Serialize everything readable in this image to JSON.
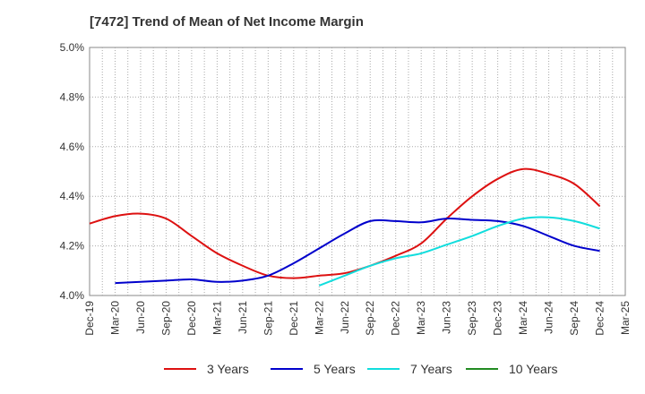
{
  "chart_data": {
    "type": "line",
    "title": "[7472]  Trend of Mean of Net Income Margin",
    "x_ticks": [
      "Dec-19",
      "Mar-20",
      "Jun-20",
      "Sep-20",
      "Dec-20",
      "Mar-21",
      "Jun-21",
      "Sep-21",
      "Dec-21",
      "Mar-22",
      "Jun-22",
      "Sep-22",
      "Dec-22",
      "Mar-23",
      "Jun-23",
      "Sep-23",
      "Dec-23",
      "Mar-24",
      "Jun-24",
      "Sep-24",
      "Dec-24",
      "Mar-25"
    ],
    "y_ticks": [
      "4.0%",
      "4.2%",
      "4.4%",
      "4.6%",
      "4.8%",
      "5.0%"
    ],
    "ylim": [
      4.0,
      5.0
    ],
    "y_unit": "%",
    "grid": true,
    "legend_position": "bottom",
    "series": [
      {
        "name": "3 Years",
        "color": "#dd1111",
        "x": [
          "Dec-19",
          "Mar-20",
          "Jun-20",
          "Sep-20",
          "Dec-20",
          "Mar-21",
          "Jun-21",
          "Sep-21",
          "Dec-21",
          "Mar-22",
          "Jun-22",
          "Sep-22",
          "Dec-22",
          "Mar-23",
          "Jun-23",
          "Sep-23",
          "Dec-23",
          "Mar-24",
          "Jun-24",
          "Sep-24",
          "Dec-24"
        ],
        "values": [
          4.29,
          4.32,
          4.33,
          4.31,
          4.24,
          4.17,
          4.12,
          4.08,
          4.07,
          4.08,
          4.09,
          4.12,
          4.16,
          4.21,
          4.31,
          4.4,
          4.47,
          4.51,
          4.49,
          4.45,
          4.36
        ]
      },
      {
        "name": "5 Years",
        "color": "#0000cc",
        "x": [
          "Mar-20",
          "Jun-20",
          "Sep-20",
          "Dec-20",
          "Mar-21",
          "Jun-21",
          "Sep-21",
          "Dec-21",
          "Mar-22",
          "Jun-22",
          "Sep-22",
          "Dec-22",
          "Mar-23",
          "Jun-23",
          "Sep-23",
          "Dec-23",
          "Mar-24",
          "Jun-24",
          "Sep-24",
          "Dec-24"
        ],
        "values": [
          4.05,
          4.055,
          4.06,
          4.065,
          4.055,
          4.06,
          4.08,
          4.13,
          4.19,
          4.25,
          4.3,
          4.3,
          4.295,
          4.31,
          4.305,
          4.3,
          4.28,
          4.24,
          4.2,
          4.18
        ]
      },
      {
        "name": "7 Years",
        "color": "#11dddd",
        "x": [
          "Mar-22",
          "Jun-22",
          "Sep-22",
          "Dec-22",
          "Mar-23",
          "Jun-23",
          "Sep-23",
          "Dec-23",
          "Mar-24",
          "Jun-24",
          "Sep-24",
          "Dec-24"
        ],
        "values": [
          4.04,
          4.08,
          4.12,
          4.15,
          4.17,
          4.205,
          4.24,
          4.28,
          4.31,
          4.315,
          4.3,
          4.27
        ]
      },
      {
        "name": "10 Years",
        "color": "#228b22",
        "x": [],
        "values": []
      }
    ]
  }
}
